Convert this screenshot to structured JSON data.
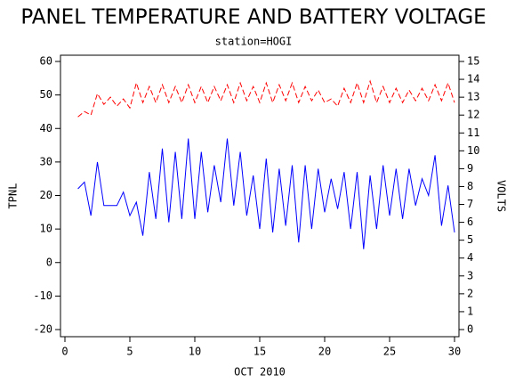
{
  "chart_data": {
    "type": "line",
    "title": "PANEL TEMPERATURE AND BATTERY VOLTAGE",
    "subtitle": "station=HOGI",
    "xlabel": "OCT 2010",
    "ylabel": "TPNL",
    "y2label": "VOLTS",
    "xlim": [
      0,
      30
    ],
    "xticks": [
      0,
      5,
      10,
      15,
      20,
      25,
      30
    ],
    "ylim": [
      -20,
      60
    ],
    "yticks": [
      -20,
      -10,
      0,
      10,
      20,
      30,
      40,
      50,
      60
    ],
    "y2lim": [
      0,
      15
    ],
    "y2ticks": [
      0,
      1,
      2,
      3,
      4,
      5,
      6,
      7,
      8,
      9,
      10,
      11,
      12,
      13,
      14,
      15
    ],
    "x": [
      1,
      1.5,
      2,
      2.5,
      3,
      3.5,
      4,
      4.5,
      5,
      5.5,
      6,
      6.5,
      7,
      7.5,
      8,
      8.5,
      9,
      9.5,
      10,
      10.5,
      11,
      11.5,
      12,
      12.5,
      13,
      13.5,
      14,
      14.5,
      15,
      15.5,
      16,
      16.5,
      17,
      17.5,
      18,
      18.5,
      19,
      19.5,
      20,
      20.5,
      21,
      21.5,
      22,
      22.5,
      23,
      23.5,
      24,
      24.5,
      25,
      25.5,
      26,
      26.5,
      27,
      27.5,
      28,
      28.5,
      29,
      29.5,
      30
    ],
    "series": [
      {
        "name": "TPNL",
        "color": "#0000ff",
        "style": "solid",
        "values": [
          22,
          24,
          14,
          30,
          17,
          17,
          17,
          21,
          14,
          18,
          8,
          27,
          13,
          34,
          12,
          33,
          13,
          37,
          13,
          33,
          15,
          29,
          18,
          37,
          17,
          33,
          14,
          26,
          10,
          31,
          9,
          28,
          11,
          29,
          6,
          29,
          10,
          28,
          15,
          25,
          16,
          27,
          10,
          27,
          4,
          26,
          10,
          29,
          14,
          28,
          13,
          28,
          17,
          25,
          20,
          32,
          11,
          23,
          9
        ]
      },
      {
        "name": "VOLTS",
        "color": "#ff0000",
        "style": "dashed",
        "axis": "y2",
        "values": [
          11.9,
          12.2,
          12.0,
          13.2,
          12.6,
          13.0,
          12.5,
          12.9,
          12.4,
          13.8,
          12.7,
          13.6,
          12.7,
          13.7,
          12.7,
          13.6,
          12.7,
          13.7,
          12.7,
          13.6,
          12.7,
          13.6,
          12.8,
          13.7,
          12.7,
          13.8,
          12.8,
          13.6,
          12.7,
          13.8,
          12.7,
          13.7,
          12.8,
          13.8,
          12.7,
          13.6,
          12.8,
          13.4,
          12.7,
          12.9,
          12.5,
          13.5,
          12.7,
          13.8,
          12.7,
          13.9,
          12.7,
          13.6,
          12.7,
          13.5,
          12.7,
          13.4,
          12.8,
          13.5,
          12.8,
          13.7,
          12.8,
          13.8,
          12.7
        ]
      }
    ]
  }
}
